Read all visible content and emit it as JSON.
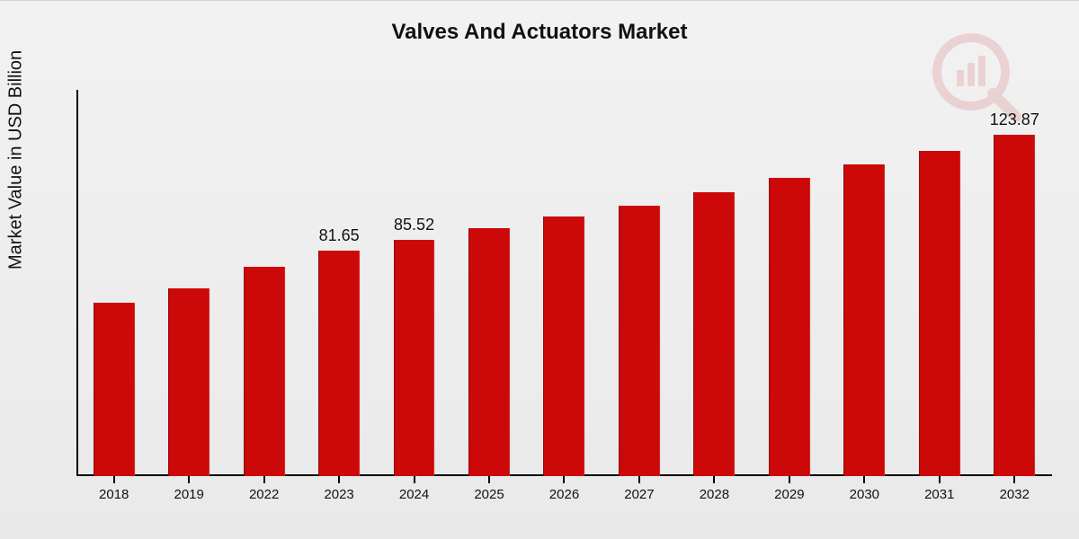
{
  "chart": {
    "type": "bar",
    "title": "Valves And Actuators Market",
    "ylabel": "Market Value in USD Billion",
    "background_gradient": [
      "#f2f2f2",
      "#e9e9e9"
    ],
    "axis_color": "#000000",
    "text_color": "#111111",
    "title_fontsize": 24,
    "ylabel_fontsize": 20,
    "value_label_fontsize": 18,
    "xtick_fontsize": 15,
    "bar_color": "#cc0808",
    "bar_width_ratio": 0.55,
    "value_scale": {
      "min": 0,
      "max": 140
    },
    "categories": [
      "2018",
      "2019",
      "2022",
      "2023",
      "2024",
      "2025",
      "2026",
      "2027",
      "2028",
      "2029",
      "2030",
      "2031",
      "2032"
    ],
    "values": [
      63,
      68,
      76,
      81.65,
      85.52,
      90,
      94,
      98,
      103,
      108,
      113,
      118,
      123.87
    ],
    "value_labels": {
      "3": "81.65",
      "4": "85.52",
      "12": "123.87"
    },
    "watermark": {
      "color": "#c51f1f",
      "opacity": 0.14
    }
  }
}
